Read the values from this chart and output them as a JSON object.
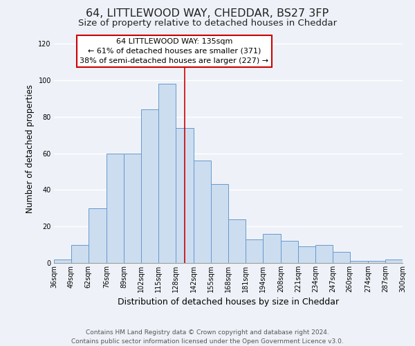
{
  "title": "64, LITTLEWOOD WAY, CHEDDAR, BS27 3FP",
  "subtitle": "Size of property relative to detached houses in Cheddar",
  "xlabel": "Distribution of detached houses by size in Cheddar",
  "ylabel": "Number of detached properties",
  "bin_labels": [
    "36sqm",
    "49sqm",
    "62sqm",
    "76sqm",
    "89sqm",
    "102sqm",
    "115sqm",
    "128sqm",
    "142sqm",
    "155sqm",
    "168sqm",
    "181sqm",
    "194sqm",
    "208sqm",
    "221sqm",
    "234sqm",
    "247sqm",
    "260sqm",
    "274sqm",
    "287sqm",
    "300sqm"
  ],
  "bin_edges": [
    36,
    49,
    62,
    76,
    89,
    102,
    115,
    128,
    142,
    155,
    168,
    181,
    194,
    208,
    221,
    234,
    247,
    260,
    274,
    287,
    300
  ],
  "bar_heights": [
    2,
    10,
    30,
    60,
    60,
    84,
    98,
    74,
    56,
    43,
    24,
    13,
    16,
    12,
    9,
    10,
    6,
    1,
    1,
    2
  ],
  "bar_color": "#ccddf0",
  "bar_edge_color": "#6699cc",
  "vline_x": 135,
  "vline_color": "#cc0000",
  "ylim": [
    0,
    125
  ],
  "yticks": [
    0,
    20,
    40,
    60,
    80,
    100,
    120
  ],
  "annotation_line1": "64 LITTLEWOOD WAY: 135sqm",
  "annotation_line2": "← 61% of detached houses are smaller (371)",
  "annotation_line3": "38% of semi-detached houses are larger (227) →",
  "annotation_box_facecolor": "#ffffff",
  "annotation_box_edgecolor": "#cc0000",
  "background_color": "#eef2f8",
  "grid_color": "#ffffff",
  "footer_line1": "Contains HM Land Registry data © Crown copyright and database right 2024.",
  "footer_line2": "Contains public sector information licensed under the Open Government Licence v3.0.",
  "title_fontsize": 11.5,
  "subtitle_fontsize": 9.5,
  "xlabel_fontsize": 9,
  "ylabel_fontsize": 8.5,
  "tick_fontsize": 7,
  "annotation_fontsize": 8,
  "footer_fontsize": 6.5
}
